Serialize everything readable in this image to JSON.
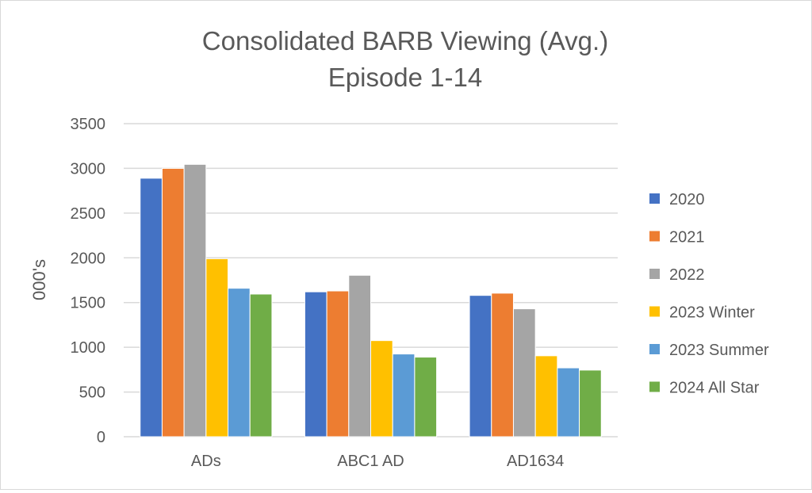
{
  "chart_data": {
    "type": "bar",
    "title": "Consolidated BARB Viewing (Avg.)",
    "subtitle": "Episode 1-14",
    "xlabel": "",
    "ylabel": "000's",
    "ylim": [
      0,
      3500
    ],
    "yticks": [
      0,
      500,
      1000,
      1500,
      2000,
      2500,
      3000,
      3500
    ],
    "grid": true,
    "legend_position": "right",
    "categories": [
      "ADs",
      "ABC1 AD",
      "AD1634"
    ],
    "series": [
      {
        "name": "2020",
        "color": "#4472C4",
        "values": [
          2890,
          1620,
          1580
        ]
      },
      {
        "name": "2021",
        "color": "#ED7D31",
        "values": [
          3000,
          1630,
          1605
        ]
      },
      {
        "name": "2022",
        "color": "#A5A5A5",
        "values": [
          3045,
          1805,
          1430
        ]
      },
      {
        "name": "2023 Winter",
        "color": "#FFC000",
        "values": [
          1990,
          1075,
          905
        ]
      },
      {
        "name": "2023 Summer",
        "color": "#5B9BD5",
        "values": [
          1660,
          925,
          770
        ]
      },
      {
        "name": "2024 All Star",
        "color": "#70AD47",
        "values": [
          1595,
          890,
          745
        ]
      }
    ]
  }
}
